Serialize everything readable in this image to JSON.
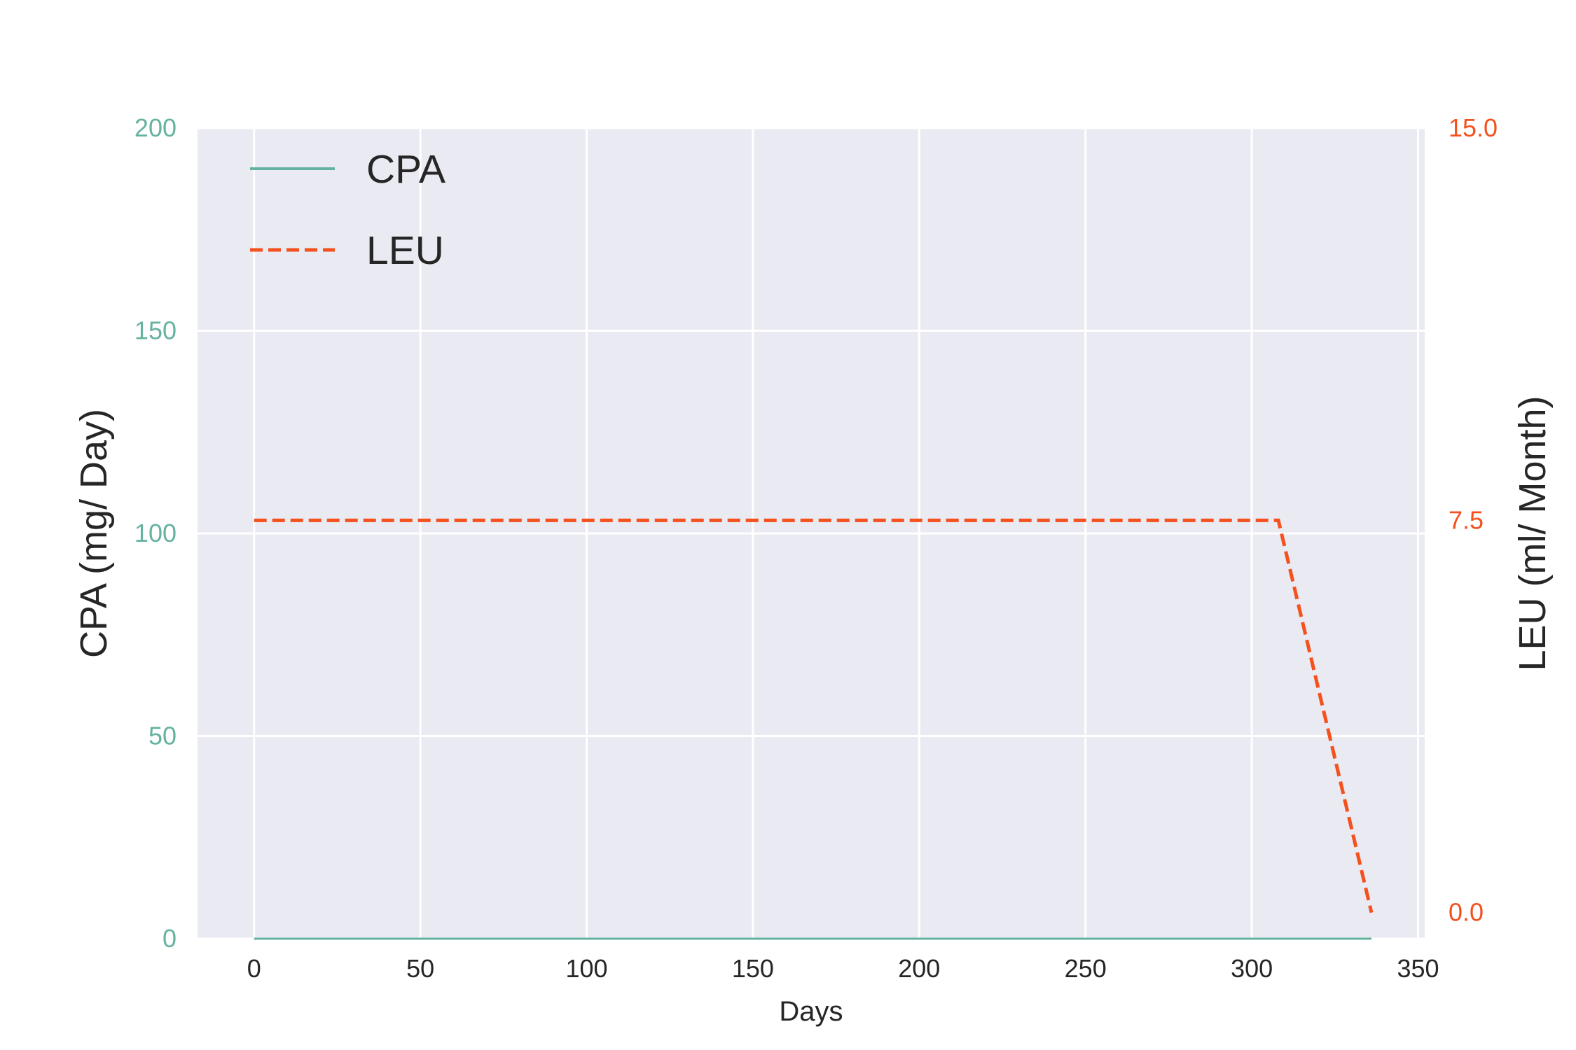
{
  "chart_data": {
    "type": "line",
    "xlabel": "Days",
    "ylabel_left": "CPA (mg/ Day)",
    "ylabel_right": "LEU (ml/ Month)",
    "xlim": [
      -17,
      352
    ],
    "ylim_left": [
      0,
      200
    ],
    "ylim_right": [
      -0.5,
      15.0
    ],
    "xticks": [
      0,
      50,
      100,
      150,
      200,
      250,
      300,
      350
    ],
    "yticks_left": [
      0,
      50,
      100,
      150,
      200
    ],
    "yticks_right": [
      0.0,
      7.5,
      15.0
    ],
    "grid": true,
    "legend_position": "top-left",
    "series": [
      {
        "name": "CPA",
        "axis": "left",
        "style": "solid",
        "color": "#66b2a0",
        "x": [
          0,
          336
        ],
        "y": [
          0,
          0
        ]
      },
      {
        "name": "LEU",
        "axis": "right",
        "style": "dashed",
        "color": "#f4511e",
        "x": [
          0,
          308,
          336
        ],
        "y": [
          7.5,
          7.5,
          0.0
        ]
      }
    ],
    "background_color": "#eaeaf2",
    "grid_color": "#ffffff"
  }
}
